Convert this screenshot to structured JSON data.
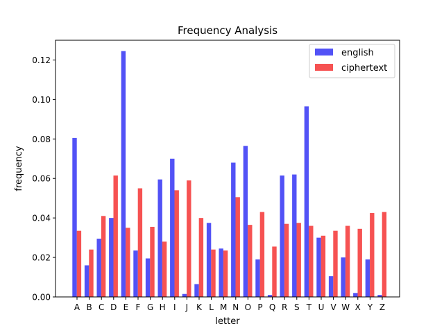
{
  "chart_data": {
    "type": "bar",
    "title": "Frequency Analysis",
    "xlabel": "letter",
    "ylabel": "frequency",
    "ylim": [
      0,
      0.13
    ],
    "yticks": [
      "0.00",
      "0.02",
      "0.04",
      "0.06",
      "0.08",
      "0.10",
      "0.12"
    ],
    "grid": false,
    "legend_position": "top-right",
    "categories": [
      "A",
      "B",
      "C",
      "D",
      "E",
      "F",
      "G",
      "H",
      "I",
      "J",
      "K",
      "L",
      "M",
      "N",
      "O",
      "P",
      "Q",
      "R",
      "S",
      "T",
      "U",
      "V",
      "W",
      "X",
      "Y",
      "Z"
    ],
    "series": [
      {
        "name": "english",
        "color": "#3434f5",
        "values": [
          0.0805,
          0.016,
          0.0295,
          0.04,
          0.1245,
          0.0235,
          0.0195,
          0.0595,
          0.07,
          0.0015,
          0.0065,
          0.0375,
          0.0245,
          0.068,
          0.0765,
          0.019,
          0.001,
          0.0615,
          0.062,
          0.0965,
          0.03,
          0.0105,
          0.02,
          0.002,
          0.019,
          0.001
        ]
      },
      {
        "name": "ciphertext",
        "color": "#f53434",
        "values": [
          0.0335,
          0.024,
          0.041,
          0.0615,
          0.035,
          0.055,
          0.0355,
          0.028,
          0.054,
          0.059,
          0.04,
          0.024,
          0.0235,
          0.0505,
          0.0365,
          0.043,
          0.0255,
          0.037,
          0.0375,
          0.036,
          0.031,
          0.0335,
          0.036,
          0.0345,
          0.0425,
          0.043
        ]
      }
    ]
  }
}
